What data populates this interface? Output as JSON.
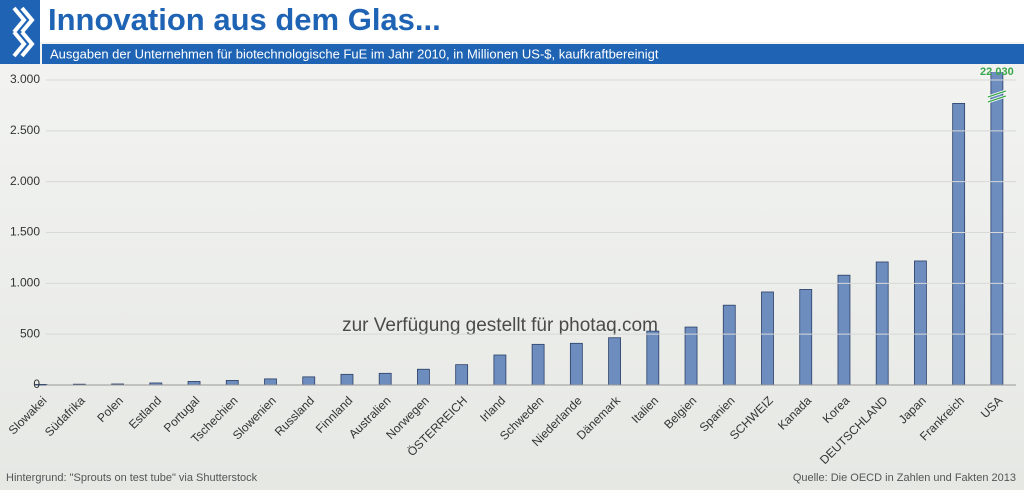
{
  "chart_data": {
    "type": "bar",
    "title": "Innovation aus dem Glas...",
    "subtitle": "Ausgaben der Unternehmen für biotechnologische FuE im Jahr 2010, in Millionen US-$, kaufkraftbereinigt",
    "categories": [
      "Slowakei",
      "Südafrika",
      "Polen",
      "Estland",
      "Portugal",
      "Tschechien",
      "Slowenien",
      "Russland",
      "Finnland",
      "Australien",
      "Norwegen",
      "ÖSTERREICH",
      "Irland",
      "Schweden",
      "Niederlande",
      "Dänemark",
      "Italien",
      "Belgien",
      "Spanien",
      "SCHWEIZ",
      "Kanada",
      "Korea",
      "DEUTSCHLAND",
      "Japan",
      "Frankreich",
      "USA"
    ],
    "values": [
      5,
      8,
      10,
      20,
      35,
      45,
      60,
      80,
      105,
      115,
      155,
      200,
      295,
      400,
      410,
      465,
      530,
      570,
      785,
      915,
      940,
      1080,
      1210,
      1220,
      2770,
      22030
    ],
    "value_labels": [
      null,
      null,
      null,
      null,
      null,
      null,
      null,
      null,
      null,
      null,
      null,
      null,
      null,
      null,
      null,
      null,
      null,
      null,
      null,
      null,
      null,
      null,
      null,
      null,
      null,
      "22 030"
    ],
    "color": "#6d8dbf",
    "ylim": [
      0,
      3000
    ],
    "yticks": [
      0,
      500,
      {
        "value": 1000,
        "label": "1.000"
      },
      {
        "value": 1500,
        "label": "1.500"
      },
      {
        "value": 2000,
        "label": "2.000"
      },
      {
        "value": 2500,
        "label": "2.500"
      },
      {
        "value": 3000,
        "label": "3.000"
      }
    ],
    "grid": true,
    "watermark": "zur Verfügung gestellt für photaq.com",
    "footnote": "Hintergrund: \"Sprouts on test tube\" via Shutterstock",
    "source": "Quelle:  Die OECD in Zahlen und Fakten 2013"
  }
}
